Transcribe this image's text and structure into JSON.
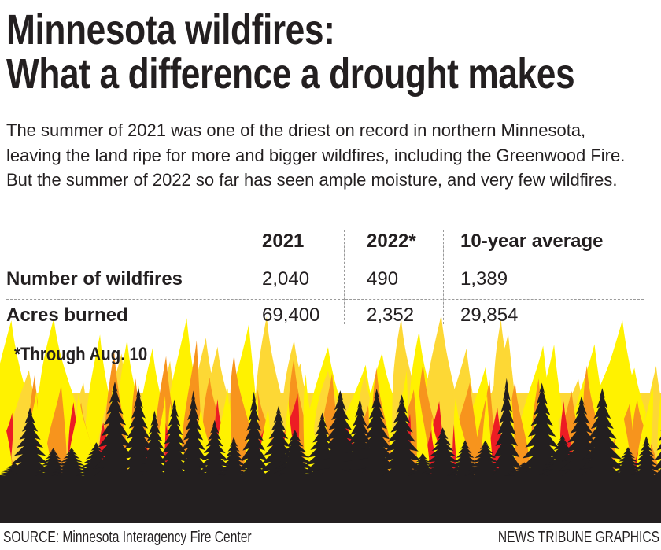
{
  "title": {
    "line1": "Minnesota wildfires:",
    "line2": "What a difference a drought makes"
  },
  "intro": "The summer of 2021 was one of the driest on record in northern Minnesota, leaving the land ripe for more and bigger wildfires, including the Greenwood Fire. But the summer of 2022 so far has seen ample moisture, and very few wildfires.",
  "table": {
    "columns": [
      "2021",
      "2022*",
      "10-year average"
    ],
    "rows": [
      {
        "label": "Number of wildfires",
        "values": [
          "2,040",
          "490",
          "1,389"
        ]
      },
      {
        "label": "Acres burned",
        "values": [
          "69,400",
          "2,352",
          "29,854"
        ]
      }
    ]
  },
  "footnote": "*Through Aug. 10",
  "footer": {
    "source": "SOURCE: Minnesota Interagency Fire Center",
    "credit": "NEWS TRIBUNE GRAPHICS"
  },
  "colors": {
    "flame_yellow": "#fdd835",
    "flame_light": "#fff200",
    "flame_orange": "#f7941d",
    "flame_red": "#ed1c24",
    "trees": "#231f20"
  },
  "illustration": "flames-and-forest"
}
